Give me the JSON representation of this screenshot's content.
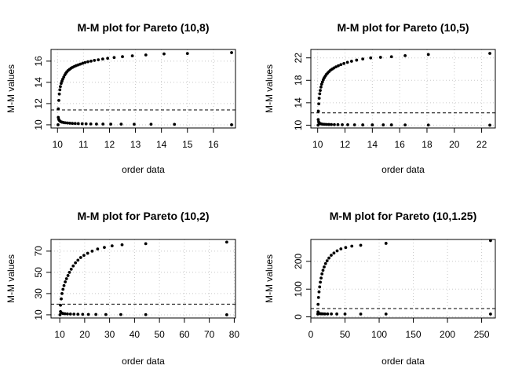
{
  "chart_data": [
    {
      "type": "scatter",
      "title": "M-M plot for Pareto (10,8)",
      "xlabel": "order data",
      "ylabel": "M-M values",
      "xlim": [
        9.75,
        16.85
      ],
      "ylim": [
        9.7,
        17.1
      ],
      "xticks": [
        10,
        11,
        12,
        13,
        14,
        15,
        16
      ],
      "yticks": [
        10,
        12,
        14,
        16
      ],
      "grid": true,
      "reference_line": 11.4,
      "series": [
        {
          "values": [
            [
              10.02,
              10.0
            ],
            [
              10.03,
              11.5
            ],
            [
              10.05,
              12.3
            ],
            [
              10.07,
              12.9
            ],
            [
              10.09,
              13.3
            ],
            [
              10.11,
              13.6
            ],
            [
              10.14,
              13.9
            ],
            [
              10.17,
              14.1
            ],
            [
              10.2,
              14.3
            ],
            [
              10.24,
              14.5
            ],
            [
              10.28,
              14.7
            ],
            [
              10.32,
              14.85
            ],
            [
              10.36,
              15.0
            ],
            [
              10.41,
              15.12
            ],
            [
              10.46,
              15.22
            ],
            [
              10.52,
              15.33
            ],
            [
              10.58,
              15.42
            ],
            [
              10.65,
              15.5
            ],
            [
              10.72,
              15.58
            ],
            [
              10.8,
              15.65
            ],
            [
              10.88,
              15.72
            ],
            [
              10.97,
              15.8
            ],
            [
              11.06,
              15.87
            ],
            [
              11.17,
              15.94
            ],
            [
              11.29,
              16.0
            ],
            [
              11.42,
              16.07
            ],
            [
              11.57,
              16.13
            ],
            [
              11.74,
              16.2
            ],
            [
              11.93,
              16.27
            ],
            [
              12.18,
              16.34
            ],
            [
              12.5,
              16.42
            ],
            [
              12.88,
              16.5
            ],
            [
              13.4,
              16.58
            ],
            [
              14.1,
              16.68
            ],
            [
              15.0,
              16.72
            ],
            [
              16.7,
              16.8
            ]
          ]
        },
        {
          "values": [
            [
              10.03,
              10.7
            ],
            [
              10.05,
              10.5
            ],
            [
              10.08,
              10.38
            ],
            [
              10.12,
              10.3
            ],
            [
              10.17,
              10.25
            ],
            [
              10.23,
              10.22
            ],
            [
              10.3,
              10.19
            ],
            [
              10.38,
              10.17
            ],
            [
              10.47,
              10.15
            ],
            [
              10.57,
              10.13
            ],
            [
              10.68,
              10.12
            ],
            [
              10.8,
              10.11
            ],
            [
              10.95,
              10.1
            ],
            [
              11.1,
              10.09
            ],
            [
              11.28,
              10.08
            ],
            [
              11.5,
              10.07
            ],
            [
              11.75,
              10.07
            ],
            [
              12.05,
              10.06
            ],
            [
              12.45,
              10.06
            ],
            [
              12.95,
              10.05
            ],
            [
              13.6,
              10.05
            ],
            [
              14.5,
              10.04
            ],
            [
              16.7,
              10.0
            ]
          ]
        }
      ]
    },
    {
      "type": "scatter",
      "title": "M-M plot for Pareto (10,5)",
      "xlabel": "order data",
      "ylabel": "M-M values",
      "xlim": [
        9.5,
        23.0
      ],
      "ylim": [
        9.5,
        23.5
      ],
      "xticks": [
        10,
        12,
        14,
        16,
        18,
        20,
        22
      ],
      "yticks": [
        10,
        14,
        18,
        22
      ],
      "grid": true,
      "reference_line": 12.2,
      "series": [
        {
          "values": [
            [
              10.03,
              10.0
            ],
            [
              10.05,
              12.5
            ],
            [
              10.08,
              13.8
            ],
            [
              10.11,
              14.8
            ],
            [
              10.15,
              15.6
            ],
            [
              10.19,
              16.2
            ],
            [
              10.24,
              16.8
            ],
            [
              10.29,
              17.3
            ],
            [
              10.35,
              17.7
            ],
            [
              10.41,
              18.1
            ],
            [
              10.48,
              18.45
            ],
            [
              10.56,
              18.75
            ],
            [
              10.64,
              19.05
            ],
            [
              10.73,
              19.3
            ],
            [
              10.83,
              19.55
            ],
            [
              10.94,
              19.8
            ],
            [
              11.06,
              20.0
            ],
            [
              11.19,
              20.2
            ],
            [
              11.34,
              20.4
            ],
            [
              11.51,
              20.6
            ],
            [
              11.7,
              20.8
            ],
            [
              11.92,
              21.0
            ],
            [
              12.18,
              21.2
            ],
            [
              12.48,
              21.4
            ],
            [
              12.85,
              21.6
            ],
            [
              13.3,
              21.8
            ],
            [
              13.88,
              22.0
            ],
            [
              14.6,
              22.1
            ],
            [
              15.4,
              22.2
            ],
            [
              16.4,
              22.4
            ],
            [
              18.1,
              22.6
            ],
            [
              22.6,
              22.8
            ]
          ]
        },
        {
          "values": [
            [
              10.04,
              11.0
            ],
            [
              10.07,
              10.6
            ],
            [
              10.11,
              10.4
            ],
            [
              10.16,
              10.3
            ],
            [
              10.22,
              10.25
            ],
            [
              10.3,
              10.2
            ],
            [
              10.4,
              10.17
            ],
            [
              10.52,
              10.15
            ],
            [
              10.66,
              10.13
            ],
            [
              10.82,
              10.12
            ],
            [
              11.0,
              10.11
            ],
            [
              11.22,
              10.1
            ],
            [
              11.48,
              10.09
            ],
            [
              11.8,
              10.08
            ],
            [
              12.2,
              10.07
            ],
            [
              12.7,
              10.06
            ],
            [
              13.3,
              10.05
            ],
            [
              14.0,
              10.05
            ],
            [
              14.8,
              10.05
            ],
            [
              15.4,
              10.05
            ],
            [
              16.4,
              10.04
            ],
            [
              18.1,
              10.03
            ],
            [
              22.6,
              10.0
            ]
          ]
        }
      ]
    },
    {
      "type": "scatter",
      "title": "M-M plot for Pareto (10,2)",
      "xlabel": "order data",
      "ylabel": "M-M values",
      "xlim": [
        6.5,
        80.5
      ],
      "ylim": [
        7.0,
        81.0
      ],
      "xticks": [
        10,
        20,
        30,
        40,
        50,
        60,
        70,
        80
      ],
      "yticks": [
        10,
        30,
        50,
        70
      ],
      "grid": true,
      "reference_line": 20,
      "series": [
        {
          "values": [
            [
              10.1,
              10.0
            ],
            [
              10.3,
              19.0
            ],
            [
              10.6,
              25.0
            ],
            [
              10.9,
              30.0
            ],
            [
              11.3,
              34.0
            ],
            [
              11.7,
              37.5
            ],
            [
              12.2,
              41.0
            ],
            [
              12.7,
              44.0
            ],
            [
              13.3,
              47.0
            ],
            [
              13.9,
              50.0
            ],
            [
              14.6,
              53.0
            ],
            [
              15.4,
              56.0
            ],
            [
              16.3,
              59.0
            ],
            [
              17.3,
              61.5
            ],
            [
              18.4,
              64.0
            ],
            [
              19.7,
              66.0
            ],
            [
              21.2,
              68.0
            ],
            [
              23.0,
              70.0
            ],
            [
              25.2,
              72.0
            ],
            [
              27.9,
              73.5
            ],
            [
              31.0,
              75.0
            ],
            [
              35.0,
              76.0
            ],
            [
              44.5,
              77.0
            ],
            [
              77.0,
              78.5
            ]
          ]
        },
        {
          "values": [
            [
              10.3,
              13.0
            ],
            [
              10.7,
              11.8
            ],
            [
              11.3,
              11.2
            ],
            [
              12.1,
              11.0
            ],
            [
              13.1,
              10.8
            ],
            [
              14.3,
              10.7
            ],
            [
              15.7,
              10.6
            ],
            [
              17.3,
              10.5
            ],
            [
              19.2,
              10.4
            ],
            [
              21.5,
              10.35
            ],
            [
              24.5,
              10.3
            ],
            [
              28.5,
              10.25
            ],
            [
              34.5,
              10.2
            ],
            [
              44.5,
              10.15
            ],
            [
              77.0,
              10.0
            ]
          ]
        }
      ]
    },
    {
      "type": "scatter",
      "title": "M-M plot for Pareto (10,1.25)",
      "xlabel": "order data",
      "ylabel": "M-M values",
      "xlim": [
        0,
        270
      ],
      "ylim": [
        -4,
        279
      ],
      "xticks": [
        0,
        50,
        100,
        150,
        200,
        250
      ],
      "yticks": [
        0,
        100,
        200
      ],
      "grid": true,
      "reference_line": 30,
      "series": [
        {
          "values": [
            [
              10.2,
              10.0
            ],
            [
              10.6,
              45.0
            ],
            [
              11.2,
              70.0
            ],
            [
              12.0,
              90.0
            ],
            [
              12.9,
              108.0
            ],
            [
              13.9,
              125.0
            ],
            [
              15.0,
              140.0
            ],
            [
              16.3,
              155.0
            ],
            [
              17.8,
              168.0
            ],
            [
              19.5,
              180.0
            ],
            [
              21.5,
              192.0
            ],
            [
              23.8,
              202.0
            ],
            [
              26.5,
              212.0
            ],
            [
              29.8,
              222.0
            ],
            [
              33.8,
              230.0
            ],
            [
              38.5,
              238.0
            ],
            [
              44.0,
              245.0
            ],
            [
              51.0,
              250.0
            ],
            [
              60.0,
              255.0
            ],
            [
              73.0,
              258.0
            ],
            [
              110.0,
              265.0
            ],
            [
              263.0,
              275.0
            ]
          ]
        },
        {
          "values": [
            [
              10.5,
              18.0
            ],
            [
              11.5,
              13.0
            ],
            [
              13.0,
              11.5
            ],
            [
              15.0,
              11.0
            ],
            [
              17.5,
              10.8
            ],
            [
              20.5,
              10.6
            ],
            [
              24.5,
              10.5
            ],
            [
              30.0,
              10.4
            ],
            [
              38.0,
              10.3
            ],
            [
              50.0,
              10.25
            ],
            [
              73.0,
              10.2
            ],
            [
              110.0,
              10.1
            ],
            [
              263.0,
              10.0
            ]
          ]
        }
      ]
    }
  ]
}
